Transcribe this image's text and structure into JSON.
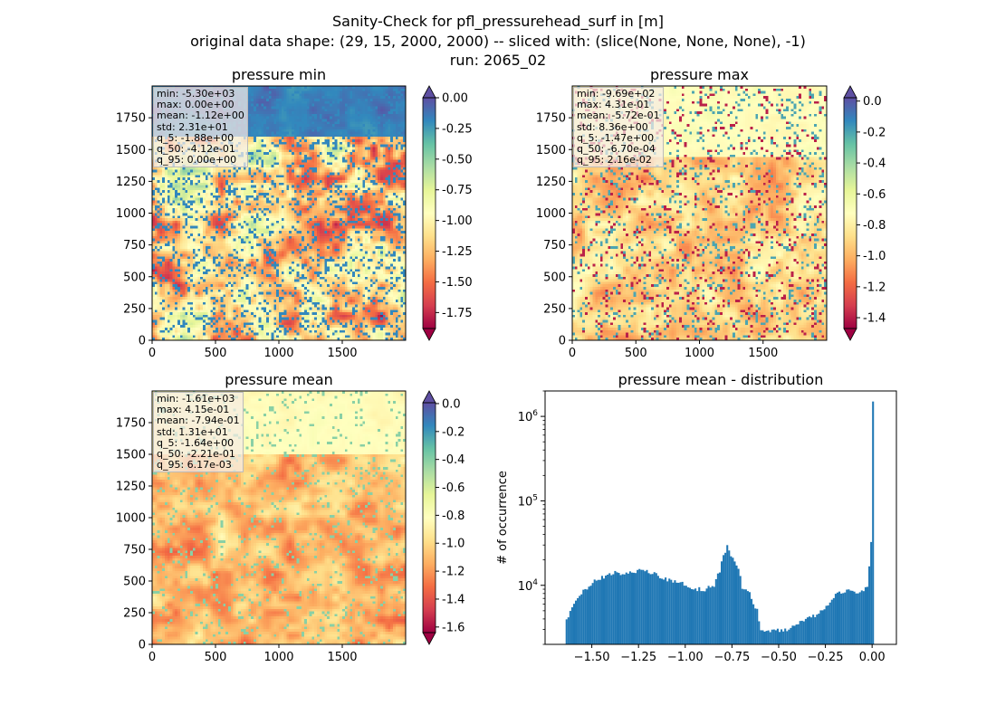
{
  "figure": {
    "title_line1": "Sanity-Check for pfl_pressurehead_surf in [m]",
    "title_line2": "original data shape: (29, 15, 2000, 2000) -- sliced with: (slice(None, None, None), -1)",
    "title_line3": "run: 2065_02"
  },
  "panels": [
    {
      "title": "pressure min",
      "cmap": "Spectral",
      "stats": [
        "min: -5.30e+03",
        "max: 0.00e+00",
        "mean: -1.12e+00",
        "std: 2.31e+01",
        "q_5: -1.88e+00",
        "q_50: -4.12e-01",
        "q_95: 0.00e+00"
      ],
      "colorbar": {
        "vmin": -1.88,
        "vmax": 0.0,
        "ticks": [
          "0.00",
          "-0.25",
          "-0.50",
          "-0.75",
          "-1.00",
          "-1.25",
          "-1.50",
          "-1.75"
        ],
        "tick_values": [
          0,
          -0.25,
          -0.5,
          -0.75,
          -1.0,
          -1.25,
          -1.5,
          -1.75
        ],
        "extend_top_color": "#5e4fa2",
        "extend_bottom_color": "#9e0142"
      }
    },
    {
      "title": "pressure max",
      "cmap": "Spectral",
      "stats": [
        "min: -9.69e+02",
        "max: 4.31e-01",
        "mean: -5.72e-01",
        "std: 8.36e+00",
        "q_5: -1.47e+00",
        "q_50: -6.70e-04",
        "q_95: 2.16e-02"
      ],
      "colorbar": {
        "vmin": -1.47,
        "vmax": 0.0216,
        "ticks": [
          "0.0",
          "-0.2",
          "-0.4",
          "-0.6",
          "-0.8",
          "-1.0",
          "-1.2",
          "-1.4"
        ],
        "tick_values": [
          0,
          -0.2,
          -0.4,
          -0.6,
          -0.8,
          -1.0,
          -1.2,
          -1.4
        ],
        "extend_top_color": "#5e4fa2",
        "extend_bottom_color": "#9e0142"
      }
    },
    {
      "title": "pressure mean",
      "cmap": "Spectral",
      "stats": [
        "min: -1.61e+03",
        "max: 4.15e-01",
        "mean: -7.94e-01",
        "std: 1.31e+01",
        "q_5: -1.64e+00",
        "q_50: -2.21e-01",
        "q_95: 6.17e-03"
      ],
      "colorbar": {
        "vmin": -1.64,
        "vmax": 0.00617,
        "ticks": [
          "0.0",
          "-0.2",
          "-0.4",
          "-0.6",
          "-0.8",
          "-1.0",
          "-1.2",
          "-1.4",
          "-1.6"
        ],
        "tick_values": [
          0,
          -0.2,
          -0.4,
          -0.6,
          -0.8,
          -1.0,
          -1.2,
          -1.4,
          -1.6
        ],
        "extend_top_color": "#5e4fa2",
        "extend_bottom_color": "#9e0142"
      }
    }
  ],
  "map_axes": {
    "x_ticks": [
      "0",
      "500",
      "1000",
      "1500"
    ],
    "x_tick_values": [
      0,
      500,
      1000,
      1500
    ],
    "y_ticks": [
      "0",
      "250",
      "500",
      "750",
      "1000",
      "1250",
      "1500",
      "1750"
    ],
    "y_tick_values": [
      0,
      250,
      500,
      750,
      1000,
      1250,
      1500,
      1750
    ],
    "xlim": [
      0,
      2000
    ],
    "ylim": [
      0,
      2000
    ]
  },
  "chart_data": {
    "type": "bar",
    "title": "pressure mean - distribution",
    "xlabel": "",
    "ylabel": "# of occurrence",
    "yscale": "log",
    "xlim": [
      -1.75,
      0.13
    ],
    "ylim": [
      2000,
      2000000
    ],
    "x_ticks": [
      "−1.50",
      "−1.25",
      "−1.00",
      "−0.75",
      "−0.50",
      "−0.25",
      "0.00"
    ],
    "x_tick_values": [
      -1.5,
      -1.25,
      -1.0,
      -0.75,
      -0.5,
      -0.25,
      0.0
    ],
    "y_ticks": [
      "10^4",
      "10^5",
      "10^6"
    ],
    "y_tick_values": [
      10000,
      100000,
      1000000
    ],
    "bar_color": "#1f77b4",
    "x": [
      -1.64,
      -1.6,
      -1.55,
      -1.5,
      -1.45,
      -1.4,
      -1.35,
      -1.3,
      -1.25,
      -1.2,
      -1.15,
      -1.1,
      -1.05,
      -1.0,
      -0.95,
      -0.9,
      -0.85,
      -0.82,
      -0.8,
      -0.78,
      -0.75,
      -0.72,
      -0.7,
      -0.66,
      -0.62,
      -0.6,
      -0.58,
      -0.55,
      -0.5,
      -0.45,
      -0.4,
      -0.35,
      -0.3,
      -0.25,
      -0.2,
      -0.15,
      -0.1,
      -0.05,
      -0.03,
      -0.01,
      0.0
    ],
    "values": [
      4000,
      6000,
      8500,
      11000,
      12500,
      14000,
      14000,
      14000,
      15000,
      14500,
      13000,
      11500,
      11000,
      10000,
      9000,
      9000,
      10000,
      15000,
      22000,
      29000,
      21000,
      16000,
      9500,
      8000,
      5000,
      3000,
      2800,
      2900,
      2950,
      3000,
      3500,
      4000,
      4500,
      5500,
      8000,
      8500,
      8500,
      8500,
      9500,
      32000,
      1500000
    ]
  }
}
